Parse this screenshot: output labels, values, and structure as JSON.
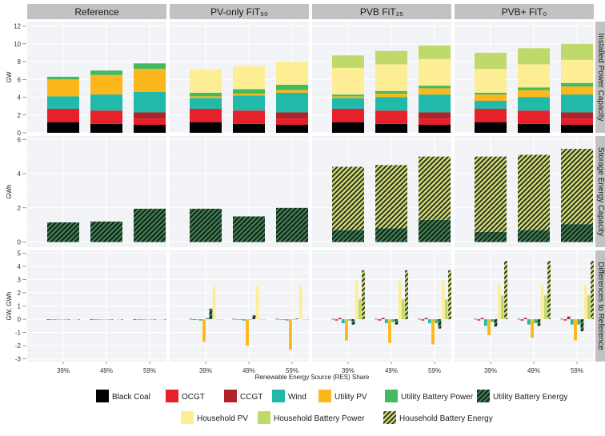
{
  "chart_data": {
    "type": "bar",
    "facet_columns": [
      "Reference",
      "PV-only FiT₅₀",
      "PVB FiT₂₅",
      "PVB+ FiT₀"
    ],
    "facet_rows": [
      {
        "key": "installed",
        "strip": "Installed Power Capacity",
        "ylabel": "GW",
        "ylim": [
          0,
          12.5
        ],
        "ticks": [
          0,
          2,
          4,
          6,
          8,
          10,
          12
        ]
      },
      {
        "key": "storage",
        "strip": "Storage Energy Capacity",
        "ylabel": "GWh",
        "ylim": [
          -0.3,
          6.2
        ],
        "ticks": [
          0,
          2,
          4,
          6
        ]
      },
      {
        "key": "diff",
        "strip": "Differences to Reference",
        "ylabel": "GW, GWh",
        "ylim": [
          -3.2,
          5.2
        ],
        "ticks": [
          -3,
          -2,
          -1,
          0,
          1,
          2,
          3,
          4,
          5
        ]
      }
    ],
    "categories": [
      "39%",
      "49%",
      "59%"
    ],
    "xlabel": "Renewable Energy Source (RES) Share",
    "series": [
      {
        "key": "black_coal",
        "name": "Black Coal",
        "color": "#000000"
      },
      {
        "key": "ocgt",
        "name": "OCGT",
        "color": "#e8202a"
      },
      {
        "key": "ccgt",
        "name": "CCGT",
        "color": "#b0232a"
      },
      {
        "key": "wind",
        "name": "Wind",
        "color": "#20b9aa"
      },
      {
        "key": "utility_pv",
        "name": "Utility PV",
        "color": "#fbb71c"
      },
      {
        "key": "utility_battery_power",
        "name": "Utility Battery Power",
        "color": "#45b95e"
      },
      {
        "key": "utility_battery_energy",
        "name": "Utility Battery Energy",
        "color": "#3a7d4e",
        "hatched": true
      },
      {
        "key": "household_pv",
        "name": "Household PV",
        "color": "#fdee96"
      },
      {
        "key": "household_battery_power",
        "name": "Household Battery Power",
        "color": "#bfd96a"
      },
      {
        "key": "household_battery_energy",
        "name": "Household Battery Energy",
        "color": "#c9d570",
        "hatched": true
      }
    ],
    "installed": [
      [
        {
          "black_coal": 1.2,
          "ocgt": 1.5,
          "ccgt": 0,
          "wind": 1.4,
          "utility_pv": 1.9,
          "utility_battery_power": 0.3
        },
        {
          "black_coal": 1.0,
          "ocgt": 1.5,
          "ccgt": 0,
          "wind": 1.8,
          "utility_pv": 2.2,
          "utility_battery_power": 0.5
        },
        {
          "black_coal": 0.9,
          "ocgt": 0.7,
          "ccgt": 0.7,
          "wind": 2.3,
          "utility_pv": 2.6,
          "utility_battery_power": 0.6
        }
      ],
      [
        {
          "black_coal": 1.2,
          "ocgt": 1.5,
          "ccgt": 0,
          "wind": 1.2,
          "utility_pv": 0.2,
          "utility_battery_power": 0.4,
          "household_pv": 2.6
        },
        {
          "black_coal": 1.0,
          "ocgt": 1.5,
          "ccgt": 0,
          "wind": 1.7,
          "utility_pv": 0.2,
          "utility_battery_power": 0.5,
          "household_pv": 2.6
        },
        {
          "black_coal": 0.9,
          "ocgt": 0.7,
          "ccgt": 0.7,
          "wind": 2.2,
          "utility_pv": 0.3,
          "utility_battery_power": 0.6,
          "household_pv": 2.6
        }
      ],
      [
        {
          "black_coal": 1.2,
          "ocgt": 1.5,
          "ccgt": 0,
          "wind": 1.2,
          "utility_pv": 0.2,
          "utility_battery_power": 0.2,
          "household_pv": 3.0,
          "household_battery_power": 1.4
        },
        {
          "black_coal": 1.0,
          "ocgt": 1.5,
          "ccgt": 0,
          "wind": 1.5,
          "utility_pv": 0.4,
          "utility_battery_power": 0.3,
          "household_pv": 3.0,
          "household_battery_power": 1.5
        },
        {
          "black_coal": 0.9,
          "ocgt": 0.7,
          "ccgt": 0.7,
          "wind": 2.0,
          "utility_pv": 0.7,
          "utility_battery_power": 0.3,
          "household_pv": 3.0,
          "household_battery_power": 1.5
        }
      ],
      [
        {
          "black_coal": 1.2,
          "ocgt": 1.5,
          "ccgt": 0,
          "wind": 0.9,
          "utility_pv": 0.7,
          "utility_battery_power": 0.2,
          "household_pv": 2.7,
          "household_battery_power": 1.8
        },
        {
          "black_coal": 1.0,
          "ocgt": 1.5,
          "ccgt": 0,
          "wind": 1.5,
          "utility_pv": 0.8,
          "utility_battery_power": 0.3,
          "household_pv": 2.6,
          "household_battery_power": 1.8
        },
        {
          "black_coal": 0.9,
          "ocgt": 0.7,
          "ccgt": 0.7,
          "wind": 2.0,
          "utility_pv": 0.9,
          "utility_battery_power": 0.4,
          "household_pv": 2.6,
          "household_battery_power": 1.8
        }
      ]
    ],
    "storage": [
      [
        {
          "utility_battery_energy": 1.15
        },
        {
          "utility_battery_energy": 1.2
        },
        {
          "utility_battery_energy": 1.95
        }
      ],
      [
        {
          "utility_battery_energy": 1.95
        },
        {
          "utility_battery_energy": 1.5
        },
        {
          "utility_battery_energy": 2.0
        }
      ],
      [
        {
          "utility_battery_energy": 0.7,
          "household_battery_energy": 3.7
        },
        {
          "utility_battery_energy": 0.8,
          "household_battery_energy": 3.7
        },
        {
          "utility_battery_energy": 1.3,
          "household_battery_energy": 3.7
        }
      ],
      [
        {
          "utility_battery_energy": 0.6,
          "household_battery_energy": 4.4
        },
        {
          "utility_battery_energy": 0.7,
          "household_battery_energy": 4.4
        },
        {
          "utility_battery_energy": 1.05,
          "household_battery_energy": 4.4
        }
      ]
    ],
    "diff": [
      [
        {
          "black_coal": 0,
          "ocgt": 0,
          "ccgt": 0,
          "wind": 0,
          "utility_pv": 0,
          "utility_battery_power": 0,
          "utility_battery_energy": 0,
          "household_pv": 0,
          "household_battery_power": 0,
          "household_battery_energy": 0
        },
        {
          "black_coal": 0,
          "ocgt": 0,
          "ccgt": 0,
          "wind": 0,
          "utility_pv": 0,
          "utility_battery_power": 0,
          "utility_battery_energy": 0,
          "household_pv": 0,
          "household_battery_power": 0,
          "household_battery_energy": 0
        },
        {
          "black_coal": 0,
          "ocgt": 0,
          "ccgt": 0,
          "wind": 0,
          "utility_pv": 0,
          "utility_battery_power": 0,
          "utility_battery_energy": 0,
          "household_pv": 0,
          "household_battery_power": 0,
          "household_battery_energy": 0
        }
      ],
      [
        {
          "black_coal": 0.02,
          "ocgt": -0.05,
          "ccgt": 0,
          "wind": -0.1,
          "utility_pv": -1.7,
          "utility_battery_power": 0.1,
          "utility_battery_energy": 0.8,
          "household_pv": 2.5,
          "household_battery_power": 0,
          "household_battery_energy": 0
        },
        {
          "black_coal": 0.02,
          "ocgt": 0,
          "ccgt": 0,
          "wind": -0.1,
          "utility_pv": -2.0,
          "utility_battery_power": 0,
          "utility_battery_energy": 0.3,
          "household_pv": 2.5,
          "household_battery_power": 0,
          "household_battery_energy": 0
        },
        {
          "black_coal": 0.02,
          "ocgt": 0,
          "ccgt": 0,
          "wind": -0.1,
          "utility_pv": -2.3,
          "utility_battery_power": 0,
          "utility_battery_energy": 0.05,
          "household_pv": 2.5,
          "household_battery_power": 0,
          "household_battery_energy": 0
        }
      ],
      [
        {
          "black_coal": 0.02,
          "ocgt": -0.1,
          "ccgt": 0.1,
          "wind": -0.3,
          "utility_pv": -1.6,
          "utility_battery_power": -0.1,
          "utility_battery_energy": -0.4,
          "household_pv": 2.9,
          "household_battery_power": 1.5,
          "household_battery_energy": 3.7
        },
        {
          "black_coal": 0.02,
          "ocgt": -0.1,
          "ccgt": 0.1,
          "wind": -0.3,
          "utility_pv": -1.8,
          "utility_battery_power": -0.2,
          "utility_battery_energy": -0.4,
          "household_pv": 2.9,
          "household_battery_power": 1.5,
          "household_battery_energy": 3.7
        },
        {
          "black_coal": 0.02,
          "ocgt": -0.1,
          "ccgt": 0.1,
          "wind": -0.3,
          "utility_pv": -1.9,
          "utility_battery_power": -0.3,
          "utility_battery_energy": -0.7,
          "household_pv": 2.9,
          "household_battery_power": 1.5,
          "household_battery_energy": 3.7
        }
      ],
      [
        {
          "black_coal": 0.02,
          "ocgt": -0.1,
          "ccgt": 0.1,
          "wind": -0.5,
          "utility_pv": -1.2,
          "utility_battery_power": -0.2,
          "utility_battery_energy": -0.55,
          "household_pv": 2.6,
          "household_battery_power": 1.8,
          "household_battery_energy": 4.4
        },
        {
          "black_coal": 0.02,
          "ocgt": -0.1,
          "ccgt": 0.1,
          "wind": -0.4,
          "utility_pv": -1.4,
          "utility_battery_power": -0.3,
          "utility_battery_energy": -0.5,
          "household_pv": 2.6,
          "household_battery_power": 1.8,
          "household_battery_energy": 4.4
        },
        {
          "black_coal": 0.02,
          "ocgt": -0.1,
          "ccgt": 0.2,
          "wind": -0.4,
          "utility_pv": -1.6,
          "utility_battery_power": -0.4,
          "utility_battery_energy": -0.9,
          "household_pv": 2.6,
          "household_battery_power": 1.8,
          "household_battery_energy": 4.4
        }
      ]
    ],
    "legend_placement": "bottom",
    "grid": true
  }
}
